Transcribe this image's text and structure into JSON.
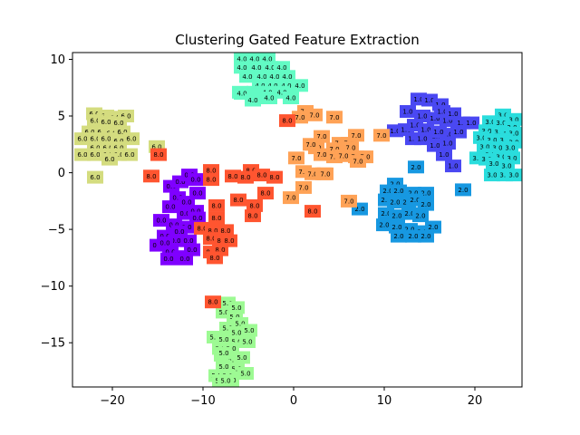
{
  "chart_data": {
    "type": "scatter",
    "title": "Clustering Gated Feature Extraction",
    "xlabel": "",
    "ylabel": "",
    "xlim": [
      -24.4,
      25.2
    ],
    "ylim": [
      -18.9,
      10.6
    ],
    "xticks": [
      -20,
      -10,
      0,
      10,
      20
    ],
    "yticks": [
      10,
      5,
      0,
      -5,
      -10,
      -15
    ],
    "grid": false,
    "legend": "none",
    "series": [
      {
        "label": "0.0",
        "color": "#7f00ff",
        "points": [
          [
            -13.5,
            -1.2
          ],
          [
            -12.5,
            -0.8
          ],
          [
            -11.5,
            -0.2
          ],
          [
            -10.8,
            -0.6
          ],
          [
            -12.8,
            -2.2
          ],
          [
            -11.8,
            -2.6
          ],
          [
            -10.6,
            -1.8
          ],
          [
            -13.6,
            -3.0
          ],
          [
            -12.0,
            -3.6
          ],
          [
            -10.8,
            -3.4
          ],
          [
            -14.6,
            -4.2
          ],
          [
            -13.2,
            -4.6
          ],
          [
            -11.8,
            -4.8
          ],
          [
            -10.6,
            -4.0
          ],
          [
            -14.2,
            -5.6
          ],
          [
            -13.0,
            -6.0
          ],
          [
            -11.6,
            -6.0
          ],
          [
            -15.0,
            -6.4
          ],
          [
            -13.6,
            -7.0
          ],
          [
            -12.4,
            -7.4
          ],
          [
            -11.2,
            -6.8
          ],
          [
            -13.8,
            -7.6
          ],
          [
            -12.0,
            -7.6
          ],
          [
            -14.2,
            -6.2
          ],
          [
            -12.6,
            -5.2
          ]
        ]
      },
      {
        "label": "1.0",
        "color": "#4a48f2",
        "points": [
          [
            13.8,
            6.5
          ],
          [
            15.0,
            6.4
          ],
          [
            16.2,
            6.0
          ],
          [
            12.6,
            5.4
          ],
          [
            14.2,
            5.0
          ],
          [
            15.6,
            4.8
          ],
          [
            17.0,
            4.6
          ],
          [
            11.2,
            3.7
          ],
          [
            12.4,
            3.8
          ],
          [
            13.4,
            4.2
          ],
          [
            16.4,
            5.4
          ],
          [
            17.6,
            5.2
          ],
          [
            18.6,
            4.4
          ],
          [
            14.6,
            3.8
          ],
          [
            15.8,
            3.2
          ],
          [
            17.0,
            3.4
          ],
          [
            18.2,
            3.6
          ],
          [
            19.6,
            4.4
          ],
          [
            13.2,
            3.0
          ],
          [
            14.2,
            3.0
          ],
          [
            15.6,
            2.4
          ],
          [
            17.0,
            2.6
          ],
          [
            16.6,
            1.6
          ],
          [
            17.6,
            0.6
          ],
          [
            16.0,
            3.6
          ]
        ]
      },
      {
        "label": "2.0",
        "color": "#1798e1",
        "points": [
          [
            13.5,
            0.5
          ],
          [
            18.7,
            -1.5
          ],
          [
            11.2,
            -1.0
          ],
          [
            10.4,
            -1.6
          ],
          [
            11.6,
            -1.6
          ],
          [
            13.2,
            -1.8
          ],
          [
            14.6,
            -1.8
          ],
          [
            10.2,
            -2.4
          ],
          [
            11.2,
            -2.6
          ],
          [
            12.6,
            -2.6
          ],
          [
            13.4,
            -2.4
          ],
          [
            14.6,
            -2.8
          ],
          [
            7.3,
            -3.2
          ],
          [
            10.2,
            -3.6
          ],
          [
            11.4,
            -3.8
          ],
          [
            12.8,
            -3.6
          ],
          [
            14.0,
            -3.8
          ],
          [
            10.0,
            -4.6
          ],
          [
            11.4,
            -4.8
          ],
          [
            12.8,
            -5.0
          ],
          [
            14.2,
            -5.2
          ],
          [
            15.4,
            -4.8
          ],
          [
            11.6,
            -5.6
          ],
          [
            13.2,
            -5.6
          ],
          [
            14.6,
            -5.6
          ]
        ]
      },
      {
        "label": "3.0",
        "color": "#2adddd",
        "points": [
          [
            23.1,
            5.1
          ],
          [
            24.5,
            4.7
          ],
          [
            21.7,
            4.5
          ],
          [
            22.9,
            4.4
          ],
          [
            24.1,
            4.0
          ],
          [
            21.3,
            3.7
          ],
          [
            22.7,
            3.6
          ],
          [
            23.7,
            3.4
          ],
          [
            25.1,
            3.5
          ],
          [
            20.7,
            3.1
          ],
          [
            21.9,
            2.9
          ],
          [
            23.3,
            2.9
          ],
          [
            24.5,
            2.7
          ],
          [
            21.1,
            2.3
          ],
          [
            22.5,
            2.2
          ],
          [
            23.9,
            2.2
          ],
          [
            21.7,
            1.6
          ],
          [
            22.9,
            1.4
          ],
          [
            24.1,
            1.3
          ],
          [
            20.3,
            1.3
          ],
          [
            21.3,
            1.2
          ],
          [
            22.1,
            0.8
          ],
          [
            23.5,
            0.6
          ],
          [
            21.9,
            -0.2
          ],
          [
            23.3,
            -0.2
          ],
          [
            24.7,
            -0.2
          ]
        ]
      },
      {
        "label": "4.0",
        "color": "#62fbc4",
        "points": [
          [
            -5.7,
            10.2
          ],
          [
            -4.3,
            10.2
          ],
          [
            -2.9,
            10.2
          ],
          [
            -5.7,
            9.3
          ],
          [
            -4.1,
            9.3
          ],
          [
            -2.6,
            9.3
          ],
          [
            -1.3,
            9.3
          ],
          [
            -5.1,
            8.5
          ],
          [
            -3.5,
            8.5
          ],
          [
            -2.1,
            8.5
          ],
          [
            -0.7,
            8.5
          ],
          [
            -3.7,
            7.7
          ],
          [
            -2.3,
            7.7
          ],
          [
            -0.8,
            7.7
          ],
          [
            0.7,
            7.7
          ],
          [
            -5.9,
            7.1
          ],
          [
            -4.3,
            7.1
          ],
          [
            -2.9,
            7.1
          ],
          [
            -1.3,
            7.1
          ],
          [
            -4.5,
            6.9
          ],
          [
            -5.7,
            7.0
          ],
          [
            -4.1,
            6.6
          ],
          [
            -2.7,
            6.6
          ],
          [
            -0.3,
            6.6
          ],
          [
            -4.5,
            6.4
          ]
        ]
      },
      {
        "label": "5.0",
        "color": "#9dfa93",
        "points": [
          [
            -7.3,
            -11.5
          ],
          [
            -6.3,
            -11.9
          ],
          [
            -7.7,
            -12.3
          ],
          [
            -6.5,
            -12.7
          ],
          [
            -5.9,
            -13.3
          ],
          [
            -7.3,
            -13.7
          ],
          [
            -6.3,
            -14.1
          ],
          [
            -4.9,
            -13.9
          ],
          [
            -8.7,
            -14.5
          ],
          [
            -7.7,
            -14.7
          ],
          [
            -6.3,
            -14.9
          ],
          [
            -5.1,
            -14.9
          ],
          [
            -8.1,
            -15.5
          ],
          [
            -6.9,
            -15.5
          ],
          [
            -7.9,
            -16.1
          ],
          [
            -6.7,
            -16.5
          ],
          [
            -5.7,
            -16.3
          ],
          [
            -7.7,
            -17.1
          ],
          [
            -6.3,
            -17.3
          ],
          [
            -5.3,
            -17.7
          ],
          [
            -8.5,
            -17.9
          ],
          [
            -7.3,
            -17.9
          ],
          [
            -6.9,
            -18.3
          ],
          [
            -8.1,
            -18.5
          ],
          [
            -7.5,
            -18.9
          ],
          [
            -7.7,
            -15.9
          ]
        ]
      },
      {
        "label": "6.0",
        "color": "#d4dc7f",
        "points": [
          [
            -22.0,
            5.2
          ],
          [
            -20.7,
            5.0
          ],
          [
            -19.7,
            4.9
          ],
          [
            -18.5,
            5.0
          ],
          [
            -21.9,
            4.6
          ],
          [
            -20.7,
            4.5
          ],
          [
            -19.3,
            4.4
          ],
          [
            -22.5,
            3.6
          ],
          [
            -21.1,
            3.6
          ],
          [
            -20.1,
            3.5
          ],
          [
            -18.9,
            3.6
          ],
          [
            -23.3,
            3.0
          ],
          [
            -21.9,
            3.0
          ],
          [
            -20.7,
            3.0
          ],
          [
            -19.3,
            2.8
          ],
          [
            -17.9,
            3.0
          ],
          [
            -21.9,
            2.2
          ],
          [
            -20.5,
            2.2
          ],
          [
            -19.3,
            2.2
          ],
          [
            -23.3,
            1.6
          ],
          [
            -21.9,
            1.6
          ],
          [
            -20.5,
            1.6
          ],
          [
            -19.3,
            1.6
          ],
          [
            -18.1,
            1.6
          ],
          [
            -21.9,
            -0.4
          ],
          [
            -15.1,
            2.3
          ],
          [
            -20.3,
            1.2
          ]
        ]
      },
      {
        "label": "7.0",
        "color": "#ffa256",
        "points": [
          [
            1.3,
            5.4
          ],
          [
            2.3,
            5.1
          ],
          [
            4.5,
            4.9
          ],
          [
            0.7,
            4.9
          ],
          [
            3.1,
            3.2
          ],
          [
            5.1,
            2.6
          ],
          [
            6.1,
            2.6
          ],
          [
            6.9,
            3.3
          ],
          [
            9.7,
            3.3
          ],
          [
            2.5,
            2.2
          ],
          [
            4.5,
            2.1
          ],
          [
            6.3,
            2.2
          ],
          [
            0.3,
            1.3
          ],
          [
            3.1,
            1.6
          ],
          [
            4.5,
            1.4
          ],
          [
            5.5,
            1.5
          ],
          [
            6.9,
            1.4
          ],
          [
            7.9,
            1.4
          ],
          [
            1.1,
            0.1
          ],
          [
            2.1,
            -0.1
          ],
          [
            3.3,
            -0.1
          ],
          [
            1.1,
            -1.3
          ],
          [
            -0.3,
            -2.2
          ],
          [
            6.1,
            -2.5
          ],
          [
            1.9,
            2.5
          ],
          [
            7.1,
            1.0
          ],
          [
            3.5,
            -0.1
          ]
        ]
      },
      {
        "label": "8.0",
        "color": "#ff5530",
        "points": [
          [
            -0.7,
            4.6
          ],
          [
            -15.7,
            -0.3
          ],
          [
            -14.9,
            1.6
          ],
          [
            -9.1,
            0.2
          ],
          [
            -9.1,
            -0.6
          ],
          [
            -6.7,
            -0.3
          ],
          [
            -4.7,
            0.2
          ],
          [
            -5.3,
            -0.4
          ],
          [
            -2.1,
            -0.4
          ],
          [
            -3.1,
            -1.8
          ],
          [
            -6.1,
            -2.4
          ],
          [
            -8.5,
            -2.9
          ],
          [
            -4.3,
            -2.9
          ],
          [
            -4.5,
            -3.8
          ],
          [
            -8.5,
            -4.0
          ],
          [
            -10.1,
            -4.9
          ],
          [
            -8.9,
            -5.1
          ],
          [
            -7.5,
            -5.1
          ],
          [
            -9.1,
            -5.8
          ],
          [
            -7.9,
            -6.0
          ],
          [
            -7.1,
            -6.0
          ],
          [
            -9.1,
            -7.0
          ],
          [
            -8.1,
            -6.8
          ],
          [
            -8.7,
            -7.5
          ],
          [
            -8.9,
            -11.4
          ],
          [
            2.1,
            -3.4
          ],
          [
            -3.5,
            -0.2
          ]
        ]
      }
    ]
  }
}
